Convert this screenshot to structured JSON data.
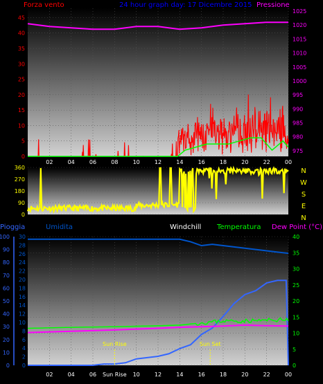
{
  "chart_data": [
    {
      "type": "line",
      "title": "24 hour graph day:  17 Dicembre 2015",
      "left_axis_label": "Forza vento",
      "right_axis_label": "Pressione",
      "x_ticks": [
        "02",
        "04",
        "06",
        "08",
        "10",
        "12",
        "14",
        "16",
        "18",
        "20",
        "22",
        "00"
      ],
      "left_ticks": [
        0,
        5,
        10,
        15,
        20,
        25,
        30,
        35,
        40,
        45
      ],
      "right_ticks": [
        975,
        980,
        985,
        990,
        995,
        1000,
        1005,
        1010,
        1015,
        1020,
        1025
      ],
      "ylim_left": [
        0,
        48
      ],
      "ylim_right": [
        973,
        1026
      ],
      "colors": {
        "wind": "#ff0000",
        "gust": "#00ff00",
        "pressure": "#ff00ff",
        "left_axis": "#ff0000",
        "right_axis": "#ff00ff",
        "title": "#0000ff"
      },
      "pressure": {
        "x": [
          0,
          2,
          4,
          6,
          8,
          10,
          12,
          14,
          16,
          18,
          20,
          22,
          24
        ],
        "values": [
          1020.5,
          1019.5,
          1019,
          1018.5,
          1018.5,
          1019.5,
          1019.5,
          1018.5,
          1019,
          1020,
          1020.5,
          1021,
          1021
        ]
      },
      "gust": {
        "x": [
          0,
          13.8,
          14.5,
          15.5,
          16.5,
          17.5,
          18.5,
          19.5,
          20.5,
          21.5,
          22.5,
          23.5,
          24
        ],
        "values": [
          0,
          0,
          2,
          3,
          4,
          4,
          4,
          5,
          6,
          6,
          2,
          5,
          3
        ]
      }
    },
    {
      "type": "line",
      "title": "",
      "left_ticks": [
        0,
        90,
        180,
        270,
        360
      ],
      "right_labels": [
        "N",
        "W",
        "S",
        "E",
        "N"
      ],
      "ylim": [
        0,
        360
      ],
      "colors": {
        "direction": "#ffff00",
        "axis": "#ffff00"
      }
    },
    {
      "type": "line",
      "labels": {
        "rain": "Pioggia",
        "humidity": "Umidita",
        "windchill": "Windchill",
        "temperature": "Temperatura",
        "dewpoint": "Dew Point (°C)"
      },
      "x_ticks": [
        "02",
        "04",
        "06",
        "Sun Rise",
        "10",
        "12",
        "14",
        "16",
        "18",
        "20",
        "22",
        "00"
      ],
      "rain_ticks": [
        0,
        10,
        20,
        30,
        40,
        50,
        60,
        70,
        80,
        90,
        100
      ],
      "rain2_ticks": [
        0,
        2,
        4,
        6,
        8,
        10,
        12,
        14,
        16,
        18,
        20,
        22,
        24,
        26,
        28,
        30
      ],
      "temp_ticks": [
        0,
        5,
        10,
        15,
        20,
        25,
        30,
        35,
        40
      ],
      "ylim_rain": [
        0,
        100
      ],
      "ylim_temp": [
        0,
        40
      ],
      "annotations": [
        {
          "text": "Sun Rise",
          "x": 8.0
        },
        {
          "text": "Sun Set",
          "x": 16.8
        }
      ],
      "colors": {
        "rain": "#3366ff",
        "humidity": "#0055cc",
        "windchill": "#ffffff",
        "temperature": "#00ff00",
        "dewpoint": "#ff00ff",
        "temp_axis": "#00ff00"
      },
      "humidity": {
        "x": [
          0,
          4,
          8,
          12,
          14,
          15,
          16,
          17,
          18,
          19,
          20,
          21,
          22,
          23,
          24
        ],
        "values": [
          98,
          98,
          98,
          98,
          98,
          96,
          93,
          94,
          93,
          92,
          91,
          90,
          89,
          88,
          87
        ]
      },
      "rain": {
        "x": [
          0,
          6,
          7,
          8,
          9,
          10,
          11,
          12,
          13,
          14,
          15,
          16,
          17,
          18,
          19,
          20,
          21,
          22,
          23,
          23.8,
          24
        ],
        "values": [
          0,
          0,
          1,
          1,
          2,
          5,
          6,
          7,
          9,
          13,
          16,
          24,
          29,
          38,
          48,
          55,
          58,
          64,
          66,
          66,
          0
        ]
      },
      "temperature": {
        "x": [
          0,
          4,
          8,
          12,
          14,
          16,
          18,
          20,
          22,
          24
        ],
        "values": [
          11.5,
          11.8,
          12.0,
          12.3,
          12.5,
          13.2,
          13.8,
          13.8,
          14.0,
          14.2
        ]
      },
      "dewpoint": {
        "x": [
          0,
          4,
          8,
          12,
          14,
          16,
          18,
          20,
          22,
          24
        ],
        "values": [
          10.2,
          10.6,
          11.0,
          11.5,
          11.8,
          12.0,
          12.2,
          12.5,
          12.3,
          12.2
        ]
      }
    }
  ]
}
